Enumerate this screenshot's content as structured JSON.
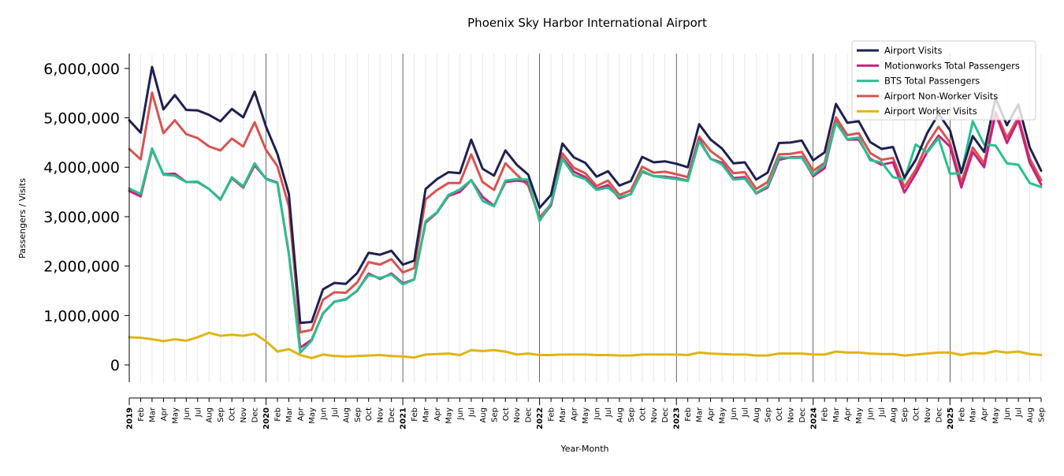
{
  "chart_data": {
    "type": "line",
    "title": "Phoenix Sky Harbor International Airport",
    "xlabel": "Year-Month",
    "ylabel": "Passengers / Visits",
    "ylim": [
      -350000,
      6300000
    ],
    "yticks": [
      0,
      1000000,
      2000000,
      3000000,
      4000000,
      5000000,
      6000000
    ],
    "ytick_labels": [
      "0",
      "1,000,000",
      "2,000,000",
      "3,000,000",
      "4,000,000",
      "5,000,000",
      "6,000,000"
    ],
    "legend_position": "top-right",
    "x": [
      "2019-01",
      "2019-02",
      "2019-03",
      "2019-04",
      "2019-05",
      "2019-06",
      "2019-07",
      "2019-08",
      "2019-09",
      "2019-10",
      "2019-11",
      "2019-12",
      "2020-01",
      "2020-02",
      "2020-03",
      "2020-04",
      "2020-05",
      "2020-06",
      "2020-07",
      "2020-08",
      "2020-09",
      "2020-10",
      "2020-11",
      "2020-12",
      "2021-01",
      "2021-02",
      "2021-03",
      "2021-04",
      "2021-05",
      "2021-06",
      "2021-07",
      "2021-08",
      "2021-09",
      "2021-10",
      "2021-11",
      "2021-12",
      "2022-01",
      "2022-02",
      "2022-03",
      "2022-04",
      "2022-05",
      "2022-06",
      "2022-07",
      "2022-08",
      "2022-09",
      "2022-10",
      "2022-11",
      "2022-12",
      "2023-01",
      "2023-02",
      "2023-03",
      "2023-04",
      "2023-05",
      "2023-06",
      "2023-07",
      "2023-08",
      "2023-09",
      "2023-10",
      "2023-11",
      "2023-12",
      "2024-01",
      "2024-02",
      "2024-03",
      "2024-04",
      "2024-05",
      "2024-06",
      "2024-07",
      "2024-08",
      "2024-09",
      "2024-10",
      "2024-11",
      "2024-12",
      "2025-01",
      "2025-02",
      "2025-03",
      "2025-04",
      "2025-05",
      "2025-06",
      "2025-07",
      "2025-08",
      "2025-09"
    ],
    "tick_labels": [
      "2019",
      "Feb",
      "Mar",
      "Apr",
      "May",
      "Jun",
      "Jul",
      "Aug",
      "Sep",
      "Oct",
      "Nov",
      "Dec",
      "2020",
      "Feb",
      "Mar",
      "Apr",
      "May",
      "Jun",
      "Jul",
      "Aug",
      "Sep",
      "Oct",
      "Nov",
      "Dec",
      "2021",
      "Feb",
      "Mar",
      "Apr",
      "May",
      "Jun",
      "Jul",
      "Aug",
      "Sep",
      "Oct",
      "Nov",
      "Dec",
      "2022",
      "Feb",
      "Mar",
      "Apr",
      "May",
      "Jun",
      "Jul",
      "Aug",
      "Sep",
      "Oct",
      "Nov",
      "Dec",
      "2023",
      "Feb",
      "Mar",
      "Apr",
      "May",
      "Jun",
      "Jul",
      "Aug",
      "Sep",
      "Oct",
      "Nov",
      "Dec",
      "2024",
      "Feb",
      "Mar",
      "Apr",
      "May",
      "Jun",
      "Jul",
      "Aug",
      "Sep",
      "Oct",
      "Nov",
      "Dec",
      "2025",
      "Feb",
      "Mar",
      "Apr",
      "May",
      "Jun",
      "Jul",
      "Aug",
      "Sep"
    ],
    "series": [
      {
        "name": "Airport Visits",
        "color": "#1f2152",
        "values": [
          4950000,
          4700000,
          6030000,
          5170000,
          5460000,
          5160000,
          5150000,
          5060000,
          4930000,
          5180000,
          5010000,
          5530000,
          4820000,
          4270000,
          3460000,
          850000,
          870000,
          1530000,
          1660000,
          1640000,
          1860000,
          2270000,
          2230000,
          2310000,
          2030000,
          2110000,
          3560000,
          3760000,
          3900000,
          3880000,
          4560000,
          3970000,
          3830000,
          4340000,
          4050000,
          3850000,
          3180000,
          3440000,
          4480000,
          4200000,
          4090000,
          3810000,
          3920000,
          3630000,
          3720000,
          4210000,
          4100000,
          4120000,
          4070000,
          4000000,
          4870000,
          4560000,
          4380000,
          4080000,
          4100000,
          3750000,
          3890000,
          4490000,
          4500000,
          4540000,
          4140000,
          4300000,
          5280000,
          4900000,
          4930000,
          4510000,
          4370000,
          4410000,
          3790000,
          4150000,
          4690000,
          5080000,
          4750000,
          3890000,
          4630000,
          4310000,
          5400000,
          4850000,
          5270000,
          4400000,
          3930000
        ]
      },
      {
        "name": "Motionworks Total Passengers",
        "color": "#c8217f",
        "values": [
          3520000,
          3410000,
          4360000,
          3860000,
          3870000,
          3700000,
          3700000,
          3560000,
          3350000,
          3780000,
          3590000,
          4040000,
          3770000,
          3690000,
          2250000,
          350000,
          510000,
          1040000,
          1280000,
          1330000,
          1500000,
          1850000,
          1740000,
          1850000,
          1650000,
          1730000,
          2880000,
          3080000,
          3420000,
          3500000,
          3740000,
          3400000,
          3220000,
          3700000,
          3730000,
          3700000,
          2930000,
          3230000,
          4190000,
          3910000,
          3800000,
          3560000,
          3640000,
          3370000,
          3460000,
          3910000,
          3820000,
          3810000,
          3780000,
          3730000,
          4560000,
          4170000,
          4090000,
          3780000,
          3800000,
          3470000,
          3590000,
          4150000,
          4200000,
          4210000,
          3820000,
          3980000,
          4920000,
          4560000,
          4560000,
          4170000,
          4050000,
          4100000,
          3490000,
          3870000,
          4310000,
          4640000,
          4420000,
          3590000,
          4310000,
          4000000,
          5080000,
          4490000,
          4960000,
          4090000,
          3650000
        ]
      },
      {
        "name": "BTS Total Passengers",
        "color": "#29c08e",
        "values": [
          3570000,
          3460000,
          4380000,
          3850000,
          3830000,
          3700000,
          3710000,
          3560000,
          3340000,
          3800000,
          3610000,
          4080000,
          3760000,
          3680000,
          2250000,
          250000,
          490000,
          1050000,
          1280000,
          1320000,
          1510000,
          1820000,
          1760000,
          1830000,
          1630000,
          1730000,
          2910000,
          3090000,
          3440000,
          3550000,
          3740000,
          3320000,
          3210000,
          3730000,
          3760000,
          3750000,
          2910000,
          3270000,
          4170000,
          3840000,
          3760000,
          3540000,
          3590000,
          3400000,
          3450000,
          3930000,
          3820000,
          3790000,
          3760000,
          3720000,
          4530000,
          4170000,
          4060000,
          3750000,
          3770000,
          3480000,
          3620000,
          4200000,
          4190000,
          4190000,
          3850000,
          4050000,
          4900000,
          4570000,
          4600000,
          4140000,
          4100000,
          3800000,
          3750000,
          4460000,
          4300000,
          4590000,
          3870000,
          3880000,
          4930000,
          4460000,
          4440000,
          4080000,
          4050000,
          3680000,
          3600000
        ]
      },
      {
        "name": "Airport Non-Worker Visits",
        "color": "#d9534f",
        "values": [
          4370000,
          4160000,
          5510000,
          4690000,
          4950000,
          4670000,
          4590000,
          4420000,
          4340000,
          4580000,
          4420000,
          4910000,
          4350000,
          4020000,
          3210000,
          660000,
          710000,
          1320000,
          1470000,
          1460000,
          1670000,
          2080000,
          2030000,
          2140000,
          1870000,
          1960000,
          3350000,
          3540000,
          3680000,
          3680000,
          4260000,
          3700000,
          3540000,
          4080000,
          3850000,
          3630000,
          2990000,
          3250000,
          4280000,
          3990000,
          3880000,
          3620000,
          3730000,
          3440000,
          3530000,
          4010000,
          3890000,
          3910000,
          3860000,
          3800000,
          4620000,
          4330000,
          4160000,
          3880000,
          3900000,
          3560000,
          3700000,
          4260000,
          4270000,
          4310000,
          3930000,
          4090000,
          5010000,
          4650000,
          4690000,
          4290000,
          4150000,
          4190000,
          3600000,
          3950000,
          4470000,
          4820000,
          4500000,
          3690000,
          4400000,
          4080000,
          5120000,
          4600000,
          5010000,
          4180000,
          3740000
        ]
      },
      {
        "name": "Airport Worker Visits",
        "color": "#e1b413",
        "values": [
          560000,
          550000,
          520000,
          480000,
          520000,
          490000,
          560000,
          650000,
          590000,
          610000,
          590000,
          630000,
          480000,
          270000,
          320000,
          200000,
          140000,
          210000,
          180000,
          170000,
          180000,
          190000,
          200000,
          180000,
          170000,
          150000,
          210000,
          220000,
          230000,
          200000,
          300000,
          280000,
          300000,
          270000,
          210000,
          230000,
          200000,
          200000,
          210000,
          210000,
          210000,
          200000,
          200000,
          190000,
          190000,
          210000,
          210000,
          210000,
          210000,
          200000,
          250000,
          230000,
          220000,
          210000,
          210000,
          190000,
          190000,
          230000,
          230000,
          230000,
          210000,
          210000,
          270000,
          250000,
          250000,
          230000,
          220000,
          220000,
          190000,
          210000,
          230000,
          250000,
          250000,
          200000,
          240000,
          230000,
          280000,
          250000,
          270000,
          220000,
          200000
        ]
      }
    ]
  }
}
